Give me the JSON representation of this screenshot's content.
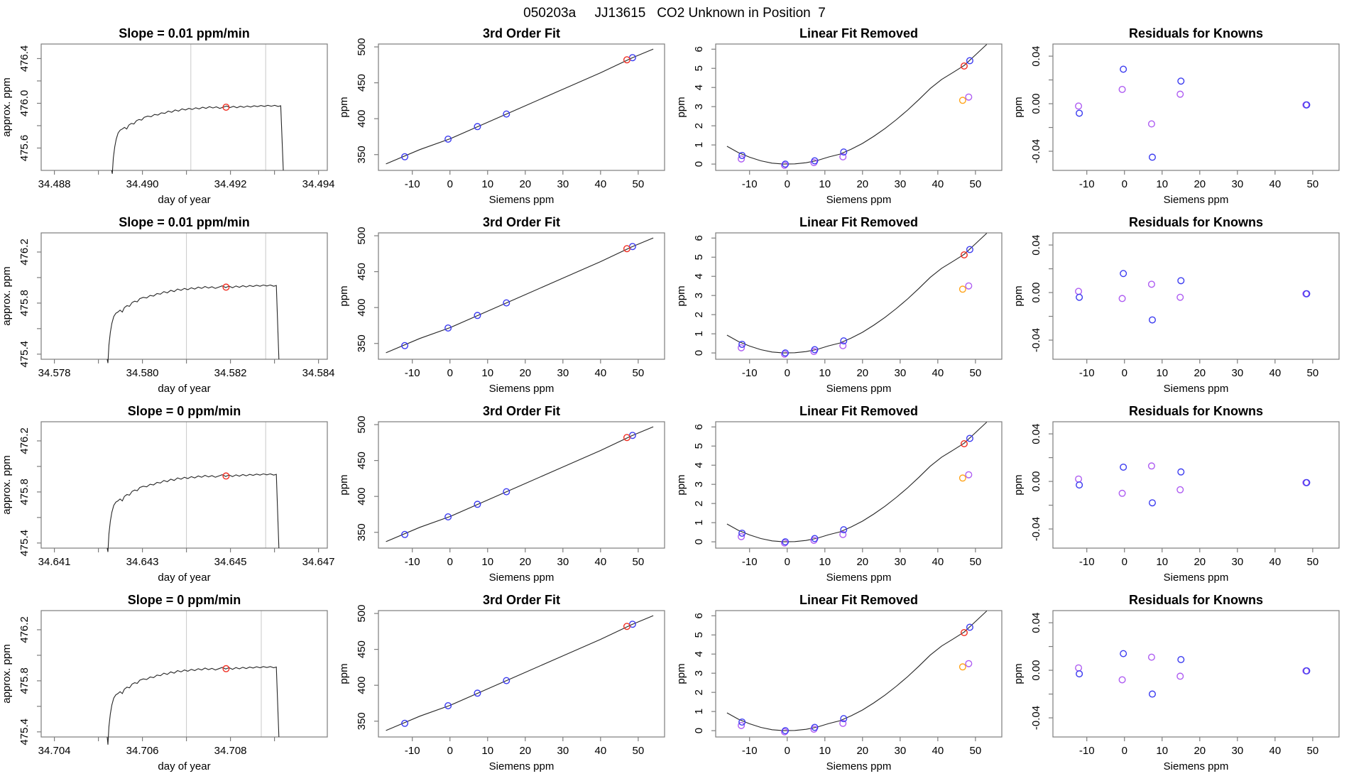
{
  "page_title": "050203a     JJ13615   CO2 Unknown in Position  7",
  "colors": {
    "red": "#f03024",
    "blue": "#3b3bf0",
    "purple": "#ae5cf2",
    "orange": "#ffa41b",
    "line": "#262626",
    "frame": "#7d7d7d",
    "grid": "#c9c9c9"
  },
  "chart_data": {
    "type": "multi-panel-line-scatter",
    "grid": "4 rows x 4 columns",
    "trace_profile": [
      [
        0.0,
        null
      ],
      [
        0.004,
        -0.6
      ],
      [
        0.01,
        -0.46
      ],
      [
        0.018,
        -0.36
      ],
      [
        0.027,
        -0.29
      ],
      [
        0.038,
        -0.235
      ],
      [
        0.05,
        -0.21
      ],
      [
        0.062,
        -0.2
      ],
      [
        0.075,
        -0.185
      ],
      [
        0.088,
        -0.2
      ],
      [
        0.1,
        -0.165
      ],
      [
        0.115,
        -0.15
      ],
      [
        0.13,
        -0.155
      ],
      [
        0.145,
        -0.125
      ],
      [
        0.16,
        -0.115
      ],
      [
        0.175,
        -0.12
      ],
      [
        0.19,
        -0.095
      ],
      [
        0.21,
        -0.085
      ],
      [
        0.23,
        -0.09
      ],
      [
        0.25,
        -0.07
      ],
      [
        0.27,
        -0.075
      ],
      [
        0.29,
        -0.055
      ],
      [
        0.31,
        -0.06
      ],
      [
        0.33,
        -0.04
      ],
      [
        0.35,
        -0.05
      ],
      [
        0.37,
        -0.03
      ],
      [
        0.39,
        -0.04
      ],
      [
        0.41,
        -0.02
      ],
      [
        0.43,
        -0.03
      ],
      [
        0.45,
        -0.015
      ],
      [
        0.47,
        -0.025
      ],
      [
        0.49,
        -0.01
      ],
      [
        0.51,
        -0.02
      ],
      [
        0.53,
        -0.005
      ],
      [
        0.55,
        -0.015
      ],
      [
        0.57,
        0.0
      ],
      [
        0.59,
        -0.012
      ],
      [
        0.61,
        -0.002
      ],
      [
        0.63,
        -0.015
      ],
      [
        0.65,
        -0.005
      ],
      [
        0.67,
        0.005
      ],
      [
        0.69,
        -0.008
      ],
      [
        0.71,
        0.003
      ],
      [
        0.73,
        -0.01
      ],
      [
        0.75,
        0.004
      ],
      [
        0.77,
        -0.006
      ],
      [
        0.79,
        0.006
      ],
      [
        0.81,
        -0.004
      ],
      [
        0.83,
        0.008
      ],
      [
        0.85,
        0.0
      ],
      [
        0.87,
        0.01
      ],
      [
        0.89,
        0.002
      ],
      [
        0.91,
        0.012
      ],
      [
        0.93,
        0.004
      ],
      [
        0.95,
        0.012
      ],
      [
        0.97,
        0.002
      ],
      [
        0.985,
        0.008
      ],
      [
        1.0,
        null
      ]
    ],
    "fit": {
      "title": "3rd Order Fit",
      "xlabel": "Siemens ppm",
      "ylabel": "ppm",
      "xlim": [
        -19,
        57
      ],
      "ylim": [
        328,
        504
      ],
      "xticks": [
        {
          "v": -10,
          "l": "-10"
        },
        {
          "v": 0,
          "l": "0"
        },
        {
          "v": 10,
          "l": "10"
        },
        {
          "v": 20,
          "l": "20"
        },
        {
          "v": 30,
          "l": "30"
        },
        {
          "v": 40,
          "l": "40"
        },
        {
          "v": 50,
          "l": "50"
        }
      ],
      "yticks": [
        {
          "v": 350,
          "l": "350"
        },
        {
          "v": 400,
          "l": "400"
        },
        {
          "v": 450,
          "l": "450"
        },
        {
          "v": 500,
          "l": "500"
        }
      ],
      "line": [
        [
          -17,
          337
        ],
        [
          -8,
          357
        ],
        [
          0,
          372
        ],
        [
          10,
          395
        ],
        [
          20,
          418
        ],
        [
          30,
          441
        ],
        [
          40,
          464
        ],
        [
          48.5,
          485
        ],
        [
          54,
          497
        ]
      ],
      "blue_points": [
        [
          -12,
          347
        ],
        [
          -0.5,
          371.5
        ],
        [
          7.3,
          389
        ],
        [
          15,
          406.5
        ],
        [
          48.5,
          485
        ]
      ],
      "red_points": [
        [
          47,
          482
        ]
      ]
    },
    "linfit": {
      "title": "Linear Fit Removed",
      "xlabel": "Siemens ppm",
      "ylabel": "ppm",
      "xlim": [
        -19,
        57
      ],
      "ylim": [
        -0.33,
        6.27
      ],
      "xticks": [
        {
          "v": -10,
          "l": "-10"
        },
        {
          "v": 0,
          "l": "0"
        },
        {
          "v": 10,
          "l": "10"
        },
        {
          "v": 20,
          "l": "20"
        },
        {
          "v": 30,
          "l": "30"
        },
        {
          "v": 40,
          "l": "40"
        },
        {
          "v": 50,
          "l": "50"
        }
      ],
      "yticks": [
        {
          "v": 0,
          "l": "0"
        },
        {
          "v": 1,
          "l": "1"
        },
        {
          "v": 2,
          "l": "2"
        },
        {
          "v": 3,
          "l": "3"
        },
        {
          "v": 4,
          "l": "4"
        },
        {
          "v": 5,
          "l": "5"
        },
        {
          "v": 6,
          "l": "6"
        }
      ],
      "curve": [
        [
          -16,
          0.93
        ],
        [
          -13,
          0.6
        ],
        [
          -10,
          0.36
        ],
        [
          -7,
          0.17
        ],
        [
          -4,
          0.05
        ],
        [
          -1,
          0.0
        ],
        [
          2,
          0.01
        ],
        [
          5,
          0.07
        ],
        [
          8,
          0.19
        ],
        [
          11,
          0.37
        ],
        [
          14,
          0.52
        ],
        [
          17,
          0.78
        ],
        [
          20,
          1.08
        ],
        [
          23,
          1.45
        ],
        [
          26,
          1.86
        ],
        [
          29,
          2.32
        ],
        [
          32,
          2.82
        ],
        [
          35,
          3.37
        ],
        [
          38,
          3.95
        ],
        [
          41,
          4.42
        ],
        [
          44,
          4.78
        ],
        [
          47,
          5.15
        ],
        [
          50,
          5.7
        ],
        [
          53,
          6.25
        ]
      ],
      "blue_points": [
        [
          -12,
          0.45
        ],
        [
          -0.5,
          0.0
        ],
        [
          7.3,
          0.17
        ],
        [
          15,
          0.63
        ],
        [
          48.5,
          5.4
        ]
      ],
      "purple_points": [
        [
          -12.2,
          0.27
        ],
        [
          -0.7,
          -0.06
        ],
        [
          7.1,
          0.08
        ],
        [
          14.8,
          0.38
        ],
        [
          48.2,
          3.5
        ]
      ],
      "red_points": [
        [
          47,
          5.12
        ]
      ],
      "orange_points": [
        [
          46.6,
          3.33
        ]
      ]
    },
    "resid_axes": {
      "title": "Residuals for Knowns",
      "xlabel": "Siemens ppm",
      "ylabel": "ppm",
      "xlim": [
        -19,
        57
      ],
      "ylim": [
        -0.0561,
        0.0502
      ],
      "xticks": [
        {
          "v": -10,
          "l": "-10"
        },
        {
          "v": 0,
          "l": "0"
        },
        {
          "v": 10,
          "l": "10"
        },
        {
          "v": 20,
          "l": "20"
        },
        {
          "v": 30,
          "l": "30"
        },
        {
          "v": 40,
          "l": "40"
        },
        {
          "v": 50,
          "l": "50"
        }
      ],
      "yticks": [
        {
          "v": -0.04,
          "l": "-0.04"
        },
        {
          "v": -0.02
        },
        {
          "v": 0,
          "l": "0.00"
        },
        {
          "v": 0.02
        },
        {
          "v": 0.04,
          "l": "0.04"
        }
      ]
    },
    "rows": [
      {
        "slope": {
          "title": "Slope =  0.01  ppm/min",
          "xlabel": "day of year",
          "ylabel": "approx. ppm",
          "xlim": [
            34.4877,
            34.4942
          ],
          "ylim": [
            475.4,
            476.53
          ],
          "xticks": [
            {
              "v": 34.488,
              "l": "34.488"
            },
            {
              "v": 34.489
            },
            {
              "v": 34.49,
              "l": "34.490"
            },
            {
              "v": 34.491
            },
            {
              "v": 34.492,
              "l": "34.492"
            },
            {
              "v": 34.493
            },
            {
              "v": 34.494,
              "l": "34.494"
            }
          ],
          "yticks": [
            {
              "v": 475.6,
              "l": "475.6"
            },
            {
              "v": 475.8
            },
            {
              "v": 476.0,
              "l": "476.0"
            },
            {
              "v": 476.2
            },
            {
              "v": 476.4,
              "l": "476.4"
            }
          ],
          "gridlines_x": [
            34.4911,
            34.4928
          ],
          "rise_day": 34.4893,
          "drop_day": 34.4932,
          "plateau_ppm": 475.97,
          "marker": {
            "x": 34.4919,
            "y": 475.965
          }
        },
        "resid": {
          "blue": [
            [
              -12,
              -0.008
            ],
            [
              -0.3,
              0.029
            ],
            [
              7.4,
              -0.045
            ],
            [
              15,
              0.019
            ],
            [
              48.4,
              -0.001
            ]
          ],
          "purple": [
            [
              -12.2,
              -0.002
            ],
            [
              -0.6,
              0.012
            ],
            [
              7.2,
              -0.017
            ],
            [
              14.8,
              0.008
            ],
            [
              48.2,
              -0.001
            ]
          ]
        }
      },
      {
        "slope": {
          "title": "Slope =  0.01  ppm/min",
          "xlabel": "day of year",
          "ylabel": "approx. ppm",
          "xlim": [
            34.5777,
            34.5842
          ],
          "ylim": [
            475.36,
            476.35
          ],
          "xticks": [
            {
              "v": 34.578,
              "l": "34.578"
            },
            {
              "v": 34.579
            },
            {
              "v": 34.58,
              "l": "34.580"
            },
            {
              "v": 34.581
            },
            {
              "v": 34.582,
              "l": "34.582"
            },
            {
              "v": 34.583
            },
            {
              "v": 34.584,
              "l": "34.584"
            }
          ],
          "yticks": [
            {
              "v": 475.4,
              "l": "475.4"
            },
            {
              "v": 475.6
            },
            {
              "v": 475.8,
              "l": "475.8"
            },
            {
              "v": 476.0
            },
            {
              "v": 476.2,
              "l": "476.2"
            }
          ],
          "gridlines_x": [
            34.581,
            34.5828
          ],
          "rise_day": 34.5792,
          "drop_day": 34.5831,
          "plateau_ppm": 475.93,
          "marker": {
            "x": 34.5819,
            "y": 475.925
          }
        },
        "resid": {
          "blue": [
            [
              -12,
              -0.004
            ],
            [
              -0.3,
              0.016
            ],
            [
              7.4,
              -0.023
            ],
            [
              15,
              0.01
            ],
            [
              48.4,
              -0.001
            ]
          ],
          "purple": [
            [
              -12.2,
              0.001
            ],
            [
              -0.6,
              -0.005
            ],
            [
              7.2,
              0.007
            ],
            [
              14.8,
              -0.004
            ],
            [
              48.2,
              -0.001
            ]
          ]
        }
      },
      {
        "slope": {
          "title": "Slope =  0  ppm/min",
          "xlabel": "day of year",
          "ylabel": "approx. ppm",
          "xlim": [
            34.6407,
            34.6472
          ],
          "ylim": [
            475.36,
            476.35
          ],
          "xticks": [
            {
              "v": 34.641,
              "l": "34.641"
            },
            {
              "v": 34.642
            },
            {
              "v": 34.643,
              "l": "34.643"
            },
            {
              "v": 34.644
            },
            {
              "v": 34.645,
              "l": "34.645"
            },
            {
              "v": 34.646
            },
            {
              "v": 34.647,
              "l": "34.647"
            }
          ],
          "yticks": [
            {
              "v": 475.4,
              "l": "475.4"
            },
            {
              "v": 475.6
            },
            {
              "v": 475.8,
              "l": "475.8"
            },
            {
              "v": 476.0
            },
            {
              "v": 476.2,
              "l": "476.2"
            }
          ],
          "gridlines_x": [
            34.644,
            34.6458
          ],
          "rise_day": 34.6422,
          "drop_day": 34.6461,
          "plateau_ppm": 475.93,
          "marker": {
            "x": 34.6449,
            "y": 475.925
          }
        },
        "resid": {
          "blue": [
            [
              -12,
              -0.003
            ],
            [
              -0.3,
              0.012
            ],
            [
              7.4,
              -0.018
            ],
            [
              15,
              0.008
            ],
            [
              48.4,
              -0.001
            ]
          ],
          "purple": [
            [
              -12.2,
              0.002
            ],
            [
              -0.6,
              -0.01
            ],
            [
              7.2,
              0.013
            ],
            [
              14.8,
              -0.007
            ],
            [
              48.2,
              -0.001
            ]
          ]
        }
      },
      {
        "slope": {
          "title": "Slope =  0  ppm/min",
          "xlabel": "day of year",
          "ylabel": "approx. ppm",
          "xlim": [
            34.7037,
            34.7102
          ],
          "ylim": [
            475.36,
            476.35
          ],
          "xticks": [
            {
              "v": 34.704,
              "l": "34.704"
            },
            {
              "v": 34.705
            },
            {
              "v": 34.706,
              "l": "34.706"
            },
            {
              "v": 34.707
            },
            {
              "v": 34.708,
              "l": "34.708"
            },
            {
              "v": 34.709
            }
          ],
          "yticks": [
            {
              "v": 475.4,
              "l": "475.4"
            },
            {
              "v": 475.6
            },
            {
              "v": 475.8,
              "l": "475.8"
            },
            {
              "v": 476.0
            },
            {
              "v": 476.2,
              "l": "476.2"
            }
          ],
          "gridlines_x": [
            34.707,
            34.7087
          ],
          "rise_day": 34.7052,
          "drop_day": 34.7091,
          "plateau_ppm": 475.9,
          "marker": {
            "x": 34.7079,
            "y": 475.895
          }
        },
        "resid": {
          "blue": [
            [
              -12,
              -0.003
            ],
            [
              -0.3,
              0.014
            ],
            [
              7.4,
              -0.02
            ],
            [
              15,
              0.009
            ],
            [
              48.4,
              -0.0005
            ]
          ],
          "purple": [
            [
              -12.2,
              0.002
            ],
            [
              -0.6,
              -0.008
            ],
            [
              7.2,
              0.011
            ],
            [
              14.8,
              -0.005
            ],
            [
              48.2,
              -0.0005
            ]
          ]
        }
      }
    ]
  }
}
